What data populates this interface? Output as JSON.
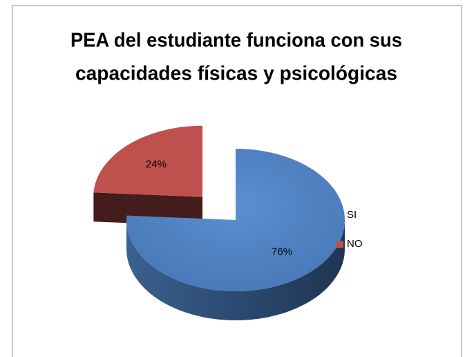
{
  "chart_data": {
    "type": "pie",
    "title": [
      "PEA del estudiante funciona con sus",
      "capacidades físicas y psicológicas"
    ],
    "categories": [
      "SI",
      "NO"
    ],
    "values": [
      76,
      24
    ],
    "value_labels": [
      "76%",
      "24%"
    ],
    "colors": [
      "#4f81bd",
      "#c0504d"
    ],
    "legend": "right"
  }
}
